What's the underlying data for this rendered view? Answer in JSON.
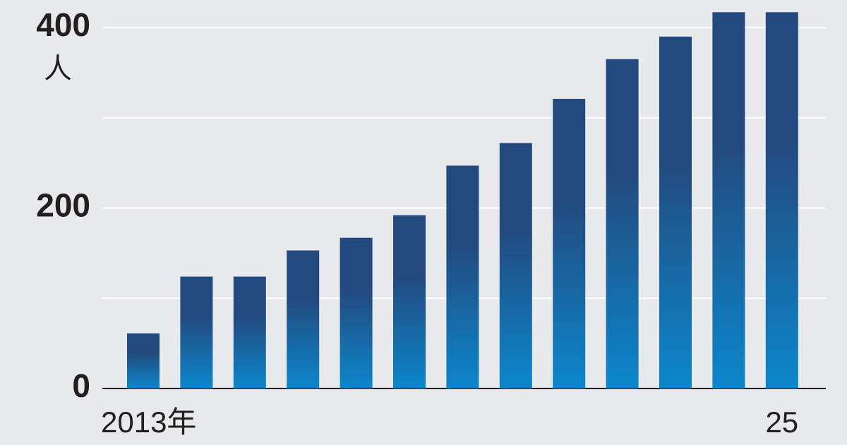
{
  "chart_data": {
    "type": "bar",
    "y_unit_label": "人",
    "categories": [
      "2013年",
      null,
      null,
      null,
      null,
      null,
      null,
      null,
      null,
      null,
      null,
      null,
      "25"
    ],
    "values": [
      61,
      124,
      124,
      153,
      167,
      192,
      247,
      272,
      321,
      365,
      390,
      417,
      417
    ],
    "gradient": [
      "#234a7e",
      "#0b87cb"
    ],
    "ylim": [
      0,
      430
    ],
    "yticks": [
      0,
      200,
      400
    ],
    "minor_yticks": [
      100,
      300
    ],
    "grid": true
  }
}
